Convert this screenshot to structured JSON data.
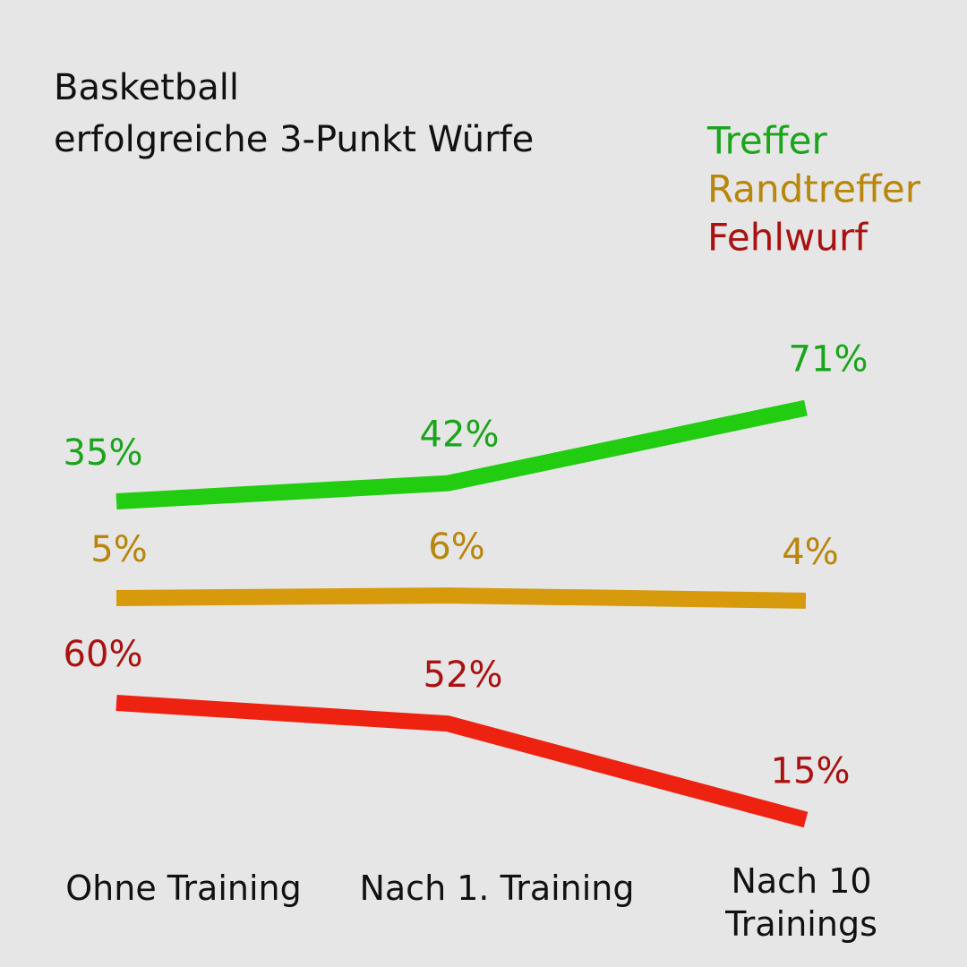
{
  "chart_data": {
    "type": "line",
    "title": [
      "Basketball",
      "erfolgreiche 3-Punkt Würfe"
    ],
    "categories": [
      "Ohne Training",
      "Nach 1. Training",
      "Nach 10 Trainings"
    ],
    "series": [
      {
        "name": "Treffer",
        "color": "#22cc11",
        "label_color": "#1ba51b",
        "values": [
          35,
          42,
          71
        ],
        "value_labels": [
          "35%",
          "42%",
          "71%"
        ]
      },
      {
        "name": "Randtreffer",
        "color": "#d69a0c",
        "label_color": "#b8860b",
        "values": [
          5,
          6,
          4
        ],
        "value_labels": [
          "5%",
          "6%",
          "4%"
        ]
      },
      {
        "name": "Fehlwurf",
        "color": "#ee2211",
        "label_color": "#aa1111",
        "values": [
          60,
          52,
          15
        ],
        "value_labels": [
          "60%",
          "52%",
          "15%"
        ]
      }
    ]
  }
}
